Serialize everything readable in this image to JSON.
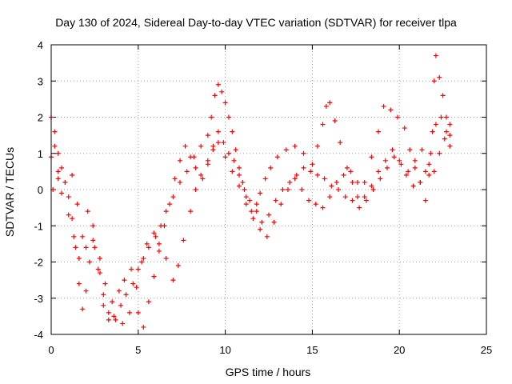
{
  "chart_data": {
    "type": "scatter",
    "title": "Day 130 of 2024, Sidereal Day-to-day VTEC variation (SDTVAR) for receiver tlpa",
    "xlabel": "GPS time / hours",
    "ylabel": "SDTVAR / TECUs",
    "xlim": [
      0,
      25
    ],
    "ylim": [
      -4,
      4
    ],
    "xticks": [
      0,
      5,
      10,
      15,
      20,
      25
    ],
    "yticks": [
      -4,
      -3,
      -2,
      -1,
      0,
      1,
      2,
      3,
      4
    ],
    "grid": true,
    "marker": "+",
    "color": "#ff0000",
    "series": [
      {
        "points": [
          [
            0.0,
            2.0
          ],
          [
            0.2,
            1.6
          ],
          [
            0.4,
            1.0
          ],
          [
            0.6,
            0.6
          ],
          [
            0.8,
            0.2
          ],
          [
            1.0,
            -0.2
          ],
          [
            1.2,
            -0.8
          ],
          [
            1.4,
            -1.6
          ],
          [
            1.6,
            -2.6
          ],
          [
            1.8,
            -3.3
          ],
          [
            2.0,
            -2.8
          ],
          [
            2.2,
            -2.0
          ],
          [
            2.5,
            -1.6
          ],
          [
            2.8,
            -2.3
          ],
          [
            3.0,
            -3.2
          ],
          [
            3.3,
            -3.6
          ],
          [
            3.6,
            -3.5
          ],
          [
            4.0,
            -3.2
          ],
          [
            4.3,
            -2.9
          ],
          [
            4.7,
            -2.6
          ],
          [
            5.0,
            -2.2
          ],
          [
            5.3,
            -1.9
          ],
          [
            5.6,
            -1.6
          ],
          [
            6.0,
            -1.3
          ],
          [
            6.3,
            -1.0
          ],
          [
            6.6,
            -0.6
          ],
          [
            7.0,
            -0.2
          ],
          [
            7.4,
            0.2
          ],
          [
            7.8,
            0.5
          ],
          [
            8.2,
            0.9
          ],
          [
            8.6,
            1.2
          ],
          [
            9.0,
            1.5
          ],
          [
            9.2,
            2.0
          ],
          [
            9.4,
            2.6
          ],
          [
            9.6,
            2.9
          ],
          [
            9.8,
            2.7
          ],
          [
            10.0,
            2.4
          ],
          [
            10.2,
            2.0
          ],
          [
            10.4,
            1.6
          ],
          [
            10.6,
            1.1
          ],
          [
            10.8,
            0.6
          ],
          [
            11.0,
            0.2
          ],
          [
            11.2,
            -0.2
          ],
          [
            11.5,
            -0.6
          ],
          [
            11.8,
            -0.4
          ],
          [
            12.0,
            -0.1
          ],
          [
            12.3,
            0.3
          ],
          [
            12.6,
            0.6
          ],
          [
            13.0,
            0.9
          ],
          [
            13.5,
            1.1
          ],
          [
            14.0,
            1.2
          ],
          [
            14.5,
            1.0
          ],
          [
            15.0,
            0.7
          ],
          [
            15.3,
            1.2
          ],
          [
            15.6,
            1.8
          ],
          [
            15.8,
            2.3
          ],
          [
            16.0,
            2.4
          ],
          [
            16.3,
            1.9
          ],
          [
            16.6,
            1.3
          ],
          [
            17.0,
            0.6
          ],
          [
            17.3,
            0.2
          ],
          [
            17.6,
            -0.2
          ],
          [
            18.0,
            0.2
          ],
          [
            18.4,
            0.9
          ],
          [
            18.8,
            1.6
          ],
          [
            19.1,
            2.3
          ],
          [
            19.5,
            2.2
          ],
          [
            19.9,
            2.0
          ],
          [
            20.3,
            1.7
          ],
          [
            20.6,
            1.1
          ],
          [
            20.9,
            0.6
          ],
          [
            21.2,
            0.2
          ],
          [
            21.5,
            -0.3
          ],
          [
            21.7,
            0.4
          ],
          [
            21.9,
            1.6
          ],
          [
            22.0,
            3.0
          ],
          [
            22.1,
            3.7
          ],
          [
            22.3,
            3.1
          ],
          [
            22.5,
            2.6
          ],
          [
            22.7,
            2.0
          ],
          [
            22.9,
            1.5
          ]
        ]
      },
      {
        "points": [
          [
            0.0,
            0.9
          ],
          [
            0.2,
            1.2
          ],
          [
            0.4,
            0.5
          ],
          [
            0.6,
            -0.1
          ],
          [
            1.0,
            -0.7
          ],
          [
            1.3,
            -1.3
          ],
          [
            1.6,
            -1.9
          ],
          [
            2.0,
            -1.6
          ],
          [
            2.4,
            -1.0
          ],
          [
            2.8,
            -1.9
          ],
          [
            3.1,
            -2.6
          ],
          [
            3.5,
            -3.1
          ],
          [
            3.9,
            -2.8
          ],
          [
            4.2,
            -2.5
          ],
          [
            4.6,
            -2.2
          ],
          [
            5.0,
            -3.4
          ],
          [
            5.3,
            -3.8
          ],
          [
            5.6,
            -3.1
          ],
          [
            5.9,
            -2.4
          ],
          [
            6.2,
            -1.7
          ],
          [
            6.6,
            -1.9
          ],
          [
            7.0,
            -2.5
          ],
          [
            7.3,
            -2.1
          ],
          [
            7.6,
            -1.4
          ],
          [
            8.0,
            -0.6
          ],
          [
            8.3,
            0.0
          ],
          [
            8.6,
            0.4
          ],
          [
            9.0,
            0.8
          ],
          [
            9.3,
            1.1
          ],
          [
            9.6,
            1.3
          ],
          [
            10.0,
            0.9
          ],
          [
            10.4,
            0.5
          ],
          [
            10.8,
            0.1
          ],
          [
            11.2,
            -0.4
          ],
          [
            11.6,
            -0.8
          ],
          [
            12.0,
            -1.1
          ],
          [
            12.4,
            -1.3
          ],
          [
            12.8,
            -0.9
          ],
          [
            13.2,
            -0.4
          ],
          [
            13.6,
            0.0
          ],
          [
            14.0,
            0.3
          ],
          [
            14.4,
            0.0
          ],
          [
            14.8,
            -0.3
          ],
          [
            15.2,
            -0.4
          ],
          [
            15.6,
            -0.5
          ],
          [
            16.0,
            -0.2
          ],
          [
            16.4,
            0.2
          ],
          [
            16.8,
            0.4
          ],
          [
            17.2,
            0.5
          ],
          [
            17.6,
            0.2
          ],
          [
            18.0,
            -0.2
          ],
          [
            18.4,
            0.1
          ],
          [
            18.8,
            0.5
          ],
          [
            19.2,
            0.8
          ],
          [
            19.6,
            1.1
          ],
          [
            20.0,
            0.8
          ],
          [
            20.4,
            0.4
          ],
          [
            20.8,
            0.1
          ],
          [
            21.2,
            0.2
          ],
          [
            21.5,
            0.5
          ],
          [
            21.8,
            1.0
          ],
          [
            22.1,
            1.8
          ],
          [
            22.4,
            2.0
          ],
          [
            22.7,
            1.6
          ],
          [
            22.9,
            1.8
          ]
        ]
      },
      {
        "points": [
          [
            0.1,
            0.0
          ],
          [
            0.4,
            0.3
          ],
          [
            0.8,
            0.2
          ],
          [
            1.2,
            0.4
          ],
          [
            1.5,
            -0.4
          ],
          [
            1.8,
            -1.3
          ],
          [
            2.1,
            -0.6
          ],
          [
            2.4,
            -1.4
          ],
          [
            2.7,
            -2.2
          ],
          [
            3.0,
            -2.9
          ],
          [
            3.3,
            -3.4
          ],
          [
            3.7,
            -3.6
          ],
          [
            4.1,
            -3.7
          ],
          [
            4.5,
            -3.4
          ],
          [
            4.9,
            -2.7
          ],
          [
            5.2,
            -2.0
          ],
          [
            5.5,
            -1.5
          ],
          [
            5.9,
            -1.2
          ],
          [
            6.2,
            -1.5
          ],
          [
            6.5,
            -1.0
          ],
          [
            6.8,
            -0.4
          ],
          [
            7.1,
            0.3
          ],
          [
            7.4,
            0.8
          ],
          [
            7.7,
            1.2
          ],
          [
            8.0,
            0.9
          ],
          [
            8.3,
            0.6
          ],
          [
            8.7,
            0.3
          ],
          [
            9.0,
            0.7
          ],
          [
            9.3,
            1.2
          ],
          [
            9.6,
            1.6
          ],
          [
            9.9,
            1.3
          ],
          [
            10.2,
            1.0
          ],
          [
            10.5,
            0.8
          ],
          [
            10.8,
            0.4
          ],
          [
            11.1,
            0.0
          ],
          [
            11.4,
            -0.3
          ],
          [
            11.8,
            -0.6
          ],
          [
            12.1,
            -0.9
          ],
          [
            12.5,
            -0.7
          ],
          [
            12.9,
            -0.3
          ],
          [
            13.3,
            0.0
          ],
          [
            13.7,
            0.2
          ],
          [
            14.1,
            0.4
          ],
          [
            14.5,
            0.6
          ],
          [
            14.9,
            0.5
          ],
          [
            15.3,
            0.4
          ],
          [
            15.7,
            0.3
          ],
          [
            16.1,
            0.1
          ],
          [
            16.5,
            0.0
          ],
          [
            16.9,
            -0.2
          ],
          [
            17.3,
            -0.3
          ],
          [
            17.7,
            -0.5
          ],
          [
            18.1,
            -0.3
          ],
          [
            18.5,
            0.0
          ],
          [
            18.9,
            0.3
          ],
          [
            19.3,
            0.6
          ],
          [
            19.7,
            0.9
          ],
          [
            20.1,
            0.7
          ],
          [
            20.5,
            0.5
          ],
          [
            20.9,
            0.8
          ],
          [
            21.3,
            1.1
          ],
          [
            21.7,
            0.7
          ],
          [
            22.0,
            0.5
          ],
          [
            22.3,
            1.0
          ],
          [
            22.6,
            1.4
          ],
          [
            22.9,
            1.2
          ]
        ]
      }
    ]
  }
}
